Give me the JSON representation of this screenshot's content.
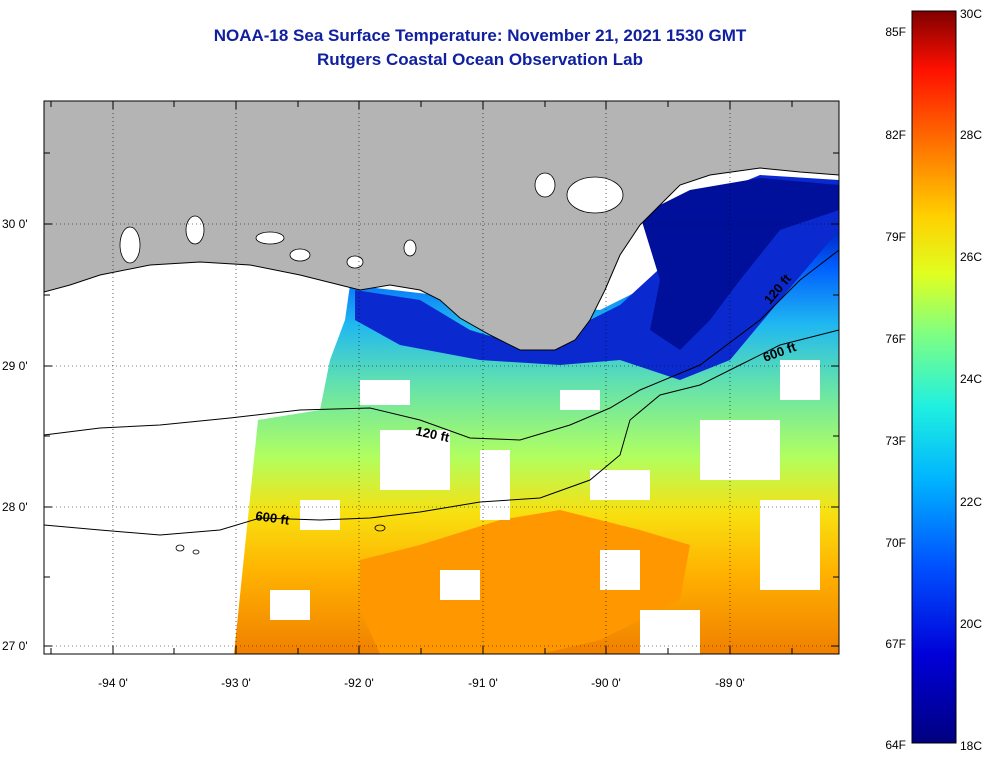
{
  "title": {
    "line1": "NOAA-18 Sea Surface Temperature:  November 21, 2021 1530 GMT",
    "line2": "Rutgers Coastal Ocean Observation Lab"
  },
  "map": {
    "lon_labels": [
      "-94 0'",
      "-93 0'",
      "-92 0'",
      "-91 0'",
      "-90 0'",
      "-89 0'"
    ],
    "lat_labels": [
      "30 0'",
      "29 0'",
      "28 0'",
      "27 0'"
    ],
    "contour_labels": [
      "120 ft",
      "600 ft",
      "120 ft",
      "600 ft"
    ]
  },
  "colorbar": {
    "fahrenheit": [
      "85F",
      "82F",
      "79F",
      "76F",
      "73F",
      "70F",
      "67F",
      "64F"
    ],
    "celsius": [
      "30C",
      "28C",
      "26C",
      "24C",
      "22C",
      "20C",
      "18C"
    ],
    "range_c": [
      18,
      30
    ]
  },
  "colors": {
    "land": "#b4b4b4",
    "title": "#1020a0",
    "cold": "#00008c",
    "warm": "#8c0000"
  }
}
